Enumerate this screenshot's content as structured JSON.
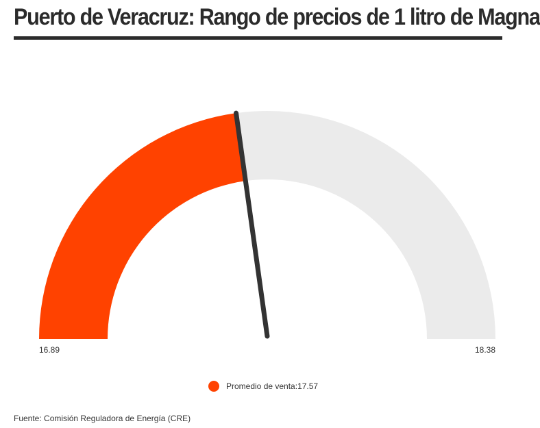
{
  "title": "Puerto de Veracruz: Rango de precios de 1 litro de Magna",
  "chart_data": {
    "type": "gauge",
    "min": 16.89,
    "max": 18.38,
    "value": 17.57,
    "min_label": "16.89",
    "max_label": "18.38",
    "legend_label": "Promedio de venta:17.57",
    "fill_color": "#ff4200",
    "track_color": "#ebebeb",
    "needle_color": "#333333"
  },
  "source": "Fuente: Comisión Reguladora de Energía (CRE)"
}
